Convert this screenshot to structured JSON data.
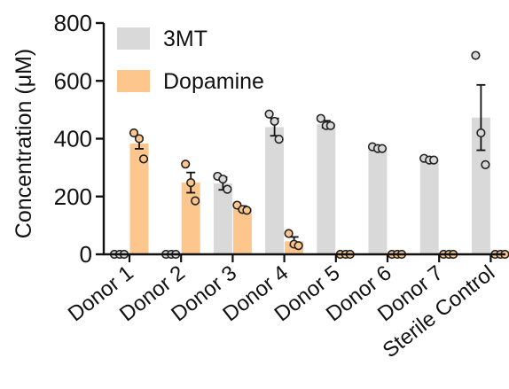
{
  "chart_data": {
    "type": "bar",
    "title": "",
    "xlabel": "",
    "ylabel": "Concentration (μM)",
    "ylim": [
      0,
      800
    ],
    "yticks": [
      0,
      200,
      400,
      600,
      800
    ],
    "grid": false,
    "legend_position": "top-left",
    "categories": [
      "Donor 1",
      "Donor 2",
      "Donor 3",
      "Donor 4",
      "Donor 5",
      "Donor 6",
      "Donor 7",
      "Sterile Control"
    ],
    "series": [
      {
        "name": "3MT",
        "color": "#d9d9d9",
        "values": [
          0,
          0,
          245,
          440,
          450,
          368,
          328,
          473
        ],
        "error": [
          0,
          0,
          22,
          30,
          12,
          5,
          5,
          113
        ],
        "points": [
          [
            0,
            0,
            0
          ],
          [
            0,
            0,
            0
          ],
          [
            270,
            260,
            225
          ],
          [
            485,
            460,
            398
          ],
          [
            470,
            445,
            445
          ],
          [
            372,
            366,
            366
          ],
          [
            332,
            326,
            326
          ],
          [
            688,
            420,
            310
          ]
        ]
      },
      {
        "name": "Dopamine",
        "color": "#fcc68d",
        "values": [
          383,
          248,
          160,
          45,
          0,
          0,
          0,
          0
        ],
        "error": [
          18,
          35,
          7,
          15,
          0,
          0,
          0,
          0
        ],
        "points": [
          [
            420,
            400,
            330
          ],
          [
            312,
            248,
            185
          ],
          [
            170,
            155,
            152
          ],
          [
            72,
            35,
            30
          ],
          [
            0,
            0,
            0
          ],
          [
            0,
            0,
            0
          ],
          [
            0,
            0,
            0
          ],
          [
            0,
            0,
            0
          ]
        ]
      }
    ]
  }
}
